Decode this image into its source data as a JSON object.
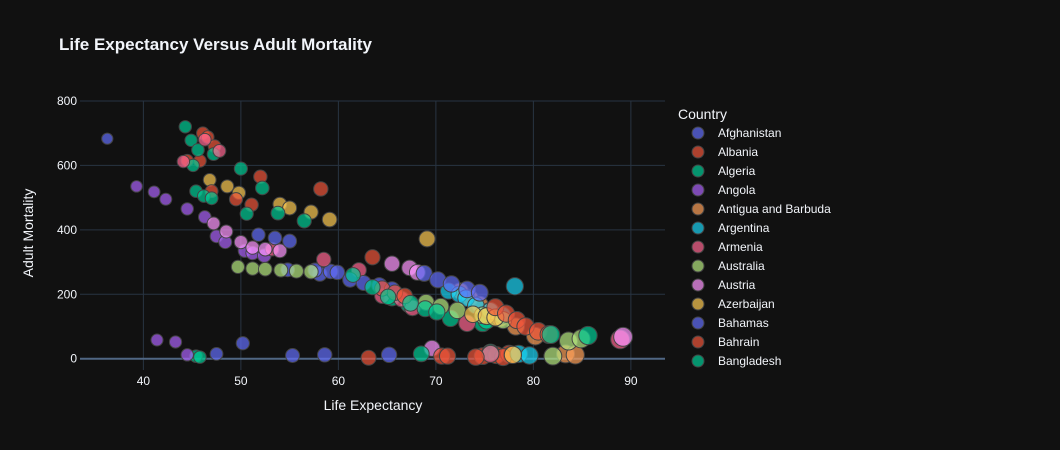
{
  "chart_data": {
    "type": "scatter",
    "title": "Life Expectancy Versus Adult Mortality",
    "xlabel": "Life Expectancy",
    "ylabel": "Adult Mortality",
    "xlim": [
      33.5,
      93.5
    ],
    "ylim": [
      -35,
      800
    ],
    "xticks": [
      40,
      50,
      60,
      70,
      80,
      90
    ],
    "yticks": [
      0,
      200,
      400,
      600,
      800
    ],
    "legend_title": "Country",
    "legend_position": "right",
    "series": [
      {
        "name": "Afghanistan",
        "color": "#636efa",
        "points": [
          [
            36.3,
            683
          ],
          [
            58.1,
            263
          ],
          [
            59.2,
            271
          ],
          [
            57.6,
            275
          ],
          [
            59.9,
            268
          ],
          [
            54.8,
            276
          ],
          [
            47.5,
            15
          ]
        ]
      },
      {
        "name": "Albania",
        "color": "#EF553B",
        "points": [
          [
            44.5,
            615
          ],
          [
            46.1,
            700
          ],
          [
            46.6,
            688
          ],
          [
            47.3,
            660
          ],
          [
            45.8,
            614
          ],
          [
            52,
            565
          ],
          [
            58.2,
            527
          ],
          [
            63.5,
            315
          ],
          [
            74.8,
            8
          ],
          [
            76.2,
            11
          ],
          [
            77.5,
            15
          ],
          [
            77.8,
            12
          ],
          [
            76.9,
            5
          ],
          [
            63.1,
            3
          ]
        ]
      },
      {
        "name": "Algeria",
        "color": "#00cc96",
        "points": [
          [
            44.3,
            720
          ],
          [
            44.9,
            678
          ],
          [
            45.6,
            648
          ],
          [
            47.2,
            635
          ],
          [
            50,
            590
          ],
          [
            45.1,
            600
          ],
          [
            65.5,
            188
          ],
          [
            67.2,
            168
          ],
          [
            71.5,
            125
          ],
          [
            74.8,
            110
          ],
          [
            75.2,
            118
          ],
          [
            75.6,
            19
          ],
          [
            45.4,
            8
          ]
        ]
      },
      {
        "name": "Angola",
        "color": "#ab63fa",
        "points": [
          [
            39.3,
            535
          ],
          [
            41.1,
            518
          ],
          [
            42.3,
            495
          ],
          [
            44.5,
            465
          ],
          [
            46.3,
            440
          ],
          [
            47.5,
            380
          ],
          [
            48.4,
            362
          ],
          [
            50.4,
            335
          ],
          [
            51.2,
            328
          ],
          [
            52.4,
            320
          ],
          [
            41.4,
            58
          ],
          [
            43.3,
            52
          ],
          [
            44.5,
            12
          ]
        ]
      },
      {
        "name": "Antigua and Barbuda",
        "color": "#FFA15A",
        "points": [
          [
            72.5,
            210
          ],
          [
            73.5,
            188
          ],
          [
            74.5,
            168
          ],
          [
            75.5,
            148
          ],
          [
            76.6,
            125
          ],
          [
            78.2,
            100
          ],
          [
            80.2,
            70
          ],
          [
            83.3,
            15
          ],
          [
            84.3,
            12
          ]
        ]
      },
      {
        "name": "Argentina",
        "color": "#19d3f3",
        "points": [
          [
            71.3,
            210
          ],
          [
            72.4,
            200
          ],
          [
            73.1,
            188
          ],
          [
            74.1,
            165
          ],
          [
            75.6,
            148
          ],
          [
            76.8,
            135
          ],
          [
            78.1,
            225
          ],
          [
            78.5,
            15
          ],
          [
            79.6,
            10
          ]
        ]
      },
      {
        "name": "Armenia",
        "color": "#FF6692",
        "points": [
          [
            44.1,
            612
          ],
          [
            46.3,
            680
          ],
          [
            47.8,
            645
          ],
          [
            53.2,
            340
          ],
          [
            58.5,
            308
          ],
          [
            62.1,
            275
          ],
          [
            64.5,
            195
          ],
          [
            66.5,
            185
          ],
          [
            67.6,
            158
          ],
          [
            73.2,
            110
          ],
          [
            75.6,
            15
          ],
          [
            88.9,
            60
          ]
        ]
      },
      {
        "name": "Australia",
        "color": "#B6E880",
        "points": [
          [
            49.7,
            285
          ],
          [
            51.2,
            280
          ],
          [
            52.5,
            278
          ],
          [
            54.1,
            275
          ],
          [
            55.7,
            272
          ],
          [
            57.2,
            270
          ],
          [
            69,
            175
          ],
          [
            70.5,
            162
          ],
          [
            72.2,
            150
          ],
          [
            74.8,
            135
          ],
          [
            76.9,
            120
          ],
          [
            82,
            8
          ],
          [
            83.6,
            55
          ],
          [
            84.9,
            62
          ]
        ]
      },
      {
        "name": "Austria",
        "color": "#FF97FF",
        "points": [
          [
            47.2,
            420
          ],
          [
            48.5,
            395
          ],
          [
            50,
            362
          ],
          [
            51.2,
            345
          ],
          [
            52.5,
            340
          ],
          [
            54,
            335
          ],
          [
            65.5,
            295
          ],
          [
            67.3,
            282
          ],
          [
            68.1,
            268
          ],
          [
            69.6,
            32
          ],
          [
            89.2,
            68
          ]
        ]
      },
      {
        "name": "Azerbaijan",
        "color": "#FECB52",
        "points": [
          [
            46.8,
            555
          ],
          [
            48.6,
            535
          ],
          [
            49.8,
            515
          ],
          [
            54,
            480
          ],
          [
            55,
            468
          ],
          [
            57.2,
            455
          ],
          [
            59.1,
            432
          ],
          [
            69.1,
            372
          ],
          [
            73.8,
            138
          ],
          [
            75.2,
            132
          ],
          [
            76.1,
            128
          ],
          [
            77.9,
            12
          ]
        ]
      },
      {
        "name": "Bahamas",
        "color": "#636efa",
        "points": [
          [
            51.8,
            385
          ],
          [
            53.5,
            375
          ],
          [
            55,
            365
          ],
          [
            61.2,
            245
          ],
          [
            62.6,
            235
          ],
          [
            64.2,
            228
          ],
          [
            65.5,
            215
          ],
          [
            68.8,
            265
          ],
          [
            70.2,
            245
          ],
          [
            71.6,
            232
          ],
          [
            73.2,
            215
          ],
          [
            74.5,
            205
          ],
          [
            50.2,
            48
          ],
          [
            55.3,
            10
          ],
          [
            58.6,
            12
          ],
          [
            65.2,
            12
          ]
        ]
      },
      {
        "name": "Bahrain",
        "color": "#EF553B",
        "points": [
          [
            47,
            520
          ],
          [
            49.5,
            495
          ],
          [
            51.1,
            478
          ],
          [
            64.5,
            218
          ],
          [
            65.8,
            205
          ],
          [
            66.8,
            195
          ],
          [
            76.1,
            160
          ],
          [
            77.2,
            140
          ],
          [
            78.3,
            120
          ],
          [
            79.2,
            100
          ],
          [
            80.5,
            85
          ],
          [
            81.6,
            75
          ],
          [
            70.6,
            8
          ],
          [
            71.2,
            8
          ],
          [
            74.1,
            5
          ]
        ]
      },
      {
        "name": "Bangladesh",
        "color": "#00cc96",
        "points": [
          [
            45.4,
            520
          ],
          [
            46.2,
            505
          ],
          [
            47,
            498
          ],
          [
            50.6,
            450
          ],
          [
            52.2,
            530
          ],
          [
            53.8,
            452
          ],
          [
            56.5,
            428
          ],
          [
            61.5,
            260
          ],
          [
            63.5,
            222
          ],
          [
            65.1,
            192
          ],
          [
            67.4,
            172
          ],
          [
            68.9,
            155
          ],
          [
            70.1,
            145
          ],
          [
            81.8,
            75
          ],
          [
            85.6,
            72
          ],
          [
            68.5,
            15
          ],
          [
            45.8,
            5
          ]
        ]
      }
    ]
  }
}
